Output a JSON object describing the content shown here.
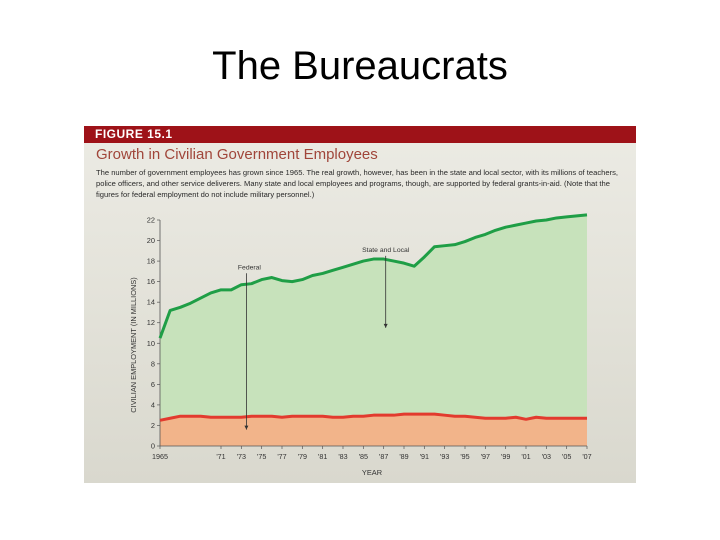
{
  "slide": {
    "title": "The Bureaucrats"
  },
  "figure": {
    "label": "FIGURE 15.1",
    "subtitle": "Growth in Civilian Government Employees",
    "caption": "The number of government employees has grown since 1965. The real growth, however, has been in the state and local sector, with its millions of teachers, police officers, and other service deliverers. Many state and local employees and programs, though, are supported by federal grants-in-aid. (Note that the figures for federal employment do not include military personnel.)"
  },
  "chart_data": {
    "type": "area",
    "xlabel": "YEAR",
    "ylabel": "CIVILIAN EMPLOYMENT (IN MILLIONS)",
    "ylim": [
      0,
      22
    ],
    "yticks": [
      0,
      2,
      4,
      6,
      8,
      10,
      12,
      14,
      16,
      18,
      20,
      22
    ],
    "xlim": [
      1965,
      2007
    ],
    "xticks": [
      1965,
      1971,
      1973,
      1975,
      1977,
      1979,
      1981,
      1983,
      1985,
      1987,
      1989,
      1991,
      1993,
      1995,
      1997,
      1999,
      2001,
      2003,
      2005,
      2007
    ],
    "xtick_labels": [
      "1965",
      "'71",
      "'73",
      "'75",
      "'77",
      "'79",
      "'81",
      "'83",
      "'85",
      "'87",
      "'89",
      "'91",
      "'93",
      "'95",
      "'97",
      "'99",
      "'01",
      "'03",
      "'05",
      "'07"
    ],
    "annotations": [
      {
        "text": "Federal",
        "x": 1973.5,
        "y": 17.2,
        "arrow_to_y": 1.6
      },
      {
        "text": "State and Local",
        "x": 1987.2,
        "y": 18.9,
        "arrow_to_y": 11.5
      }
    ],
    "series": [
      {
        "name": "Federal",
        "color": "#e23b2e",
        "fill": "#f2b48a",
        "x": [
          1965,
          1966,
          1967,
          1968,
          1969,
          1970,
          1971,
          1972,
          1973,
          1974,
          1975,
          1976,
          1977,
          1978,
          1979,
          1980,
          1981,
          1982,
          1983,
          1984,
          1985,
          1986,
          1987,
          1988,
          1989,
          1990,
          1991,
          1992,
          1993,
          1994,
          1995,
          1996,
          1997,
          1998,
          1999,
          2000,
          2001,
          2002,
          2003,
          2004,
          2005,
          2006,
          2007
        ],
        "y": [
          2.5,
          2.7,
          2.9,
          2.9,
          2.9,
          2.8,
          2.8,
          2.8,
          2.8,
          2.9,
          2.9,
          2.9,
          2.8,
          2.9,
          2.9,
          2.9,
          2.9,
          2.8,
          2.8,
          2.9,
          2.9,
          3.0,
          3.0,
          3.0,
          3.1,
          3.1,
          3.1,
          3.1,
          3.0,
          2.9,
          2.9,
          2.8,
          2.7,
          2.7,
          2.7,
          2.8,
          2.6,
          2.8,
          2.7,
          2.7,
          2.7,
          2.7,
          2.7
        ]
      },
      {
        "name": "State and Local",
        "color": "#1f9e46",
        "fill": "#c7e2bb",
        "x": [
          1965,
          1966,
          1967,
          1968,
          1969,
          1970,
          1971,
          1972,
          1973,
          1974,
          1975,
          1976,
          1977,
          1978,
          1979,
          1980,
          1981,
          1982,
          1983,
          1984,
          1985,
          1986,
          1987,
          1988,
          1989,
          1990,
          1991,
          1992,
          1993,
          1994,
          1995,
          1996,
          1997,
          1998,
          1999,
          2000,
          2001,
          2002,
          2003,
          2004,
          2005,
          2006,
          2007
        ],
        "y": [
          10.5,
          13.2,
          13.5,
          13.9,
          14.4,
          14.9,
          15.2,
          15.2,
          15.7,
          15.8,
          16.2,
          16.4,
          16.1,
          16.0,
          16.2,
          16.6,
          16.8,
          17.1,
          17.4,
          17.7,
          18.0,
          18.2,
          18.2,
          18.0,
          17.8,
          17.5,
          18.4,
          19.4,
          19.5,
          19.6,
          19.9,
          20.3,
          20.6,
          21.0,
          21.3,
          21.5,
          21.7,
          21.9,
          22.0,
          22.2,
          22.3,
          22.4,
          22.5
        ]
      }
    ]
  }
}
